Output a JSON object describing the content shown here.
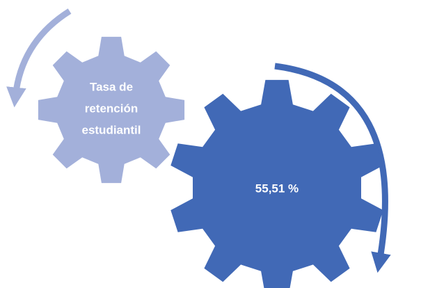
{
  "nodes": [
    {
      "label": [
        "Tasa de",
        "retención",
        "estudiantil"
      ]
    },
    {
      "label": "55,51 %"
    }
  ]
}
